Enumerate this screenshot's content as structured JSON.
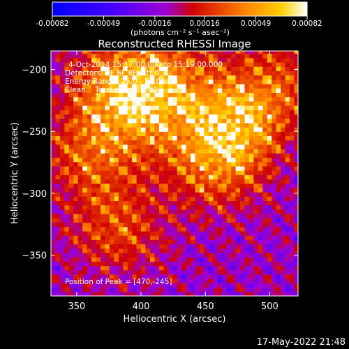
{
  "chart_data": {
    "type": "heatmap",
    "title": "Reconstructed RHESSI Image",
    "xlabel": "Heliocentric X (arcsec)",
    "ylabel": "Heliocentric Y (arcsec)",
    "xlim": [
      330,
      522
    ],
    "ylim": [
      -383,
      -185
    ],
    "xticks": [
      350,
      400,
      450,
      500
    ],
    "yticks": [
      -200,
      -250,
      -300,
      -350
    ],
    "colorbar": {
      "ticks": [
        "-0.00082",
        "-0.00049",
        "-0.00016",
        "0.00016",
        "0.00049",
        "0.00082"
      ],
      "range": [
        -0.00082,
        0.00082
      ],
      "units_label": "(photons cm⁻² s⁻¹ asec⁻²)"
    },
    "annotations": [
      "4-Oct-2014 15:17:00.000 to 15:19:00.000",
      "Detectors: 3F 6F 9F, Att 0",
      "Energy Range: 25.0 - 50.0 keV",
      "Clean    Total counts: 882."
    ],
    "peak_label": "Position of Peak = [470,-245]",
    "peak": [
      470,
      -245
    ],
    "hot_regions": [
      {
        "x": 378,
        "y": -215,
        "amp": 0.0006
      },
      {
        "x": 405,
        "y": -232,
        "amp": 0.00055
      },
      {
        "x": 360,
        "y": -270,
        "amp": 0.0005
      },
      {
        "x": 470,
        "y": -245,
        "amp": 0.00082
      },
      {
        "x": 455,
        "y": -280,
        "amp": 0.0005
      },
      {
        "x": 380,
        "y": -330,
        "amp": 0.00045
      },
      {
        "x": 420,
        "y": -205,
        "amp": 0.0004
      },
      {
        "x": 505,
        "y": -210,
        "amp": 0.0004
      }
    ],
    "grid": false
  },
  "timestamp": "17-May-2022 21:48"
}
